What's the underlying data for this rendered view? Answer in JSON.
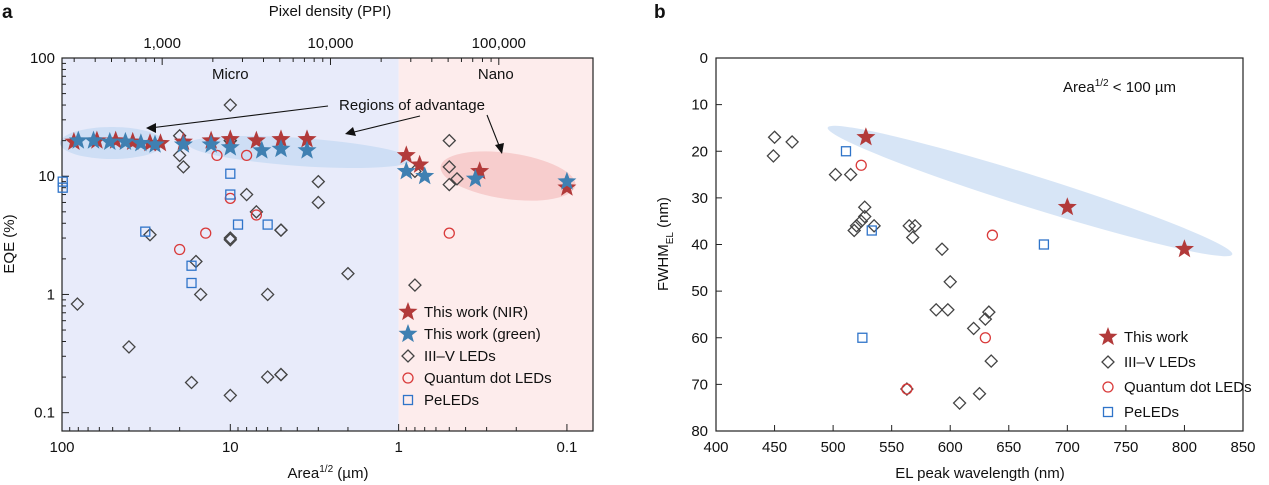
{
  "panel_labels": {
    "a": "a",
    "b": "b"
  },
  "colors": {
    "nir": "#b23a3a",
    "green": "#3f80b2",
    "iii_v": "#444444",
    "qd": "#d93a3a",
    "pe": "#2f74c9",
    "micro_bg": "#e8ebfa",
    "nano_bg": "#fdecec",
    "ellipse_blue": "#c9dcf3",
    "ellipse_red": "#f6caca"
  },
  "chart_data": [
    {
      "type": "scatter",
      "panel": "a",
      "xlabel_main": "Area",
      "xlabel_sup": "1/2",
      "xlabel_unit": " (µm)",
      "top_xlabel": "Pixel density (PPI)",
      "ylabel": "EQE (%)",
      "xscale": "log",
      "yscale": "log",
      "xlim": [
        100,
        0.07
      ],
      "ylim": [
        0.07,
        100
      ],
      "x_ticks": [
        {
          "v": 100,
          "label": "100"
        },
        {
          "v": 10,
          "label": "10"
        },
        {
          "v": 1,
          "label": "1"
        },
        {
          "v": 0.1,
          "label": "0.1"
        }
      ],
      "y_ticks": [
        {
          "v": 100,
          "label": "100"
        },
        {
          "v": 10,
          "label": "10"
        },
        {
          "v": 1,
          "label": "1"
        },
        {
          "v": 0.1,
          "label": "0.1"
        }
      ],
      "top_ticks": [
        {
          "v": 1000,
          "label": "1,000"
        },
        {
          "v": 10000,
          "label": "10,000"
        },
        {
          "v": 100000,
          "label": "100,000"
        }
      ],
      "regions": [
        {
          "name": "Micro",
          "x_from": 100,
          "x_to": 1
        },
        {
          "name": "Nano",
          "x_from": 1,
          "x_to": 0.07
        }
      ],
      "annotation": "Regions of advantage",
      "series": [
        {
          "name": "This work (NIR)",
          "marker": "star",
          "color_key": "nir",
          "x": [
            85,
            62,
            48,
            38,
            30,
            26,
            19,
            13,
            10,
            7,
            5,
            3.5,
            0.9,
            0.75,
            0.33,
            0.1
          ],
          "y": [
            19.5,
            20,
            20,
            19.5,
            19,
            19,
            19.5,
            20,
            20.5,
            20,
            20.5,
            20.5,
            15,
            12.5,
            11,
            8
          ]
        },
        {
          "name": "This work (green)",
          "marker": "star",
          "color_key": "green",
          "x": [
            80,
            65,
            52,
            42,
            34,
            28,
            19,
            13,
            10,
            6.5,
            5,
            3.5,
            0.9,
            0.7,
            0.35,
            0.1
          ],
          "y": [
            20,
            20,
            19.5,
            19.5,
            19,
            18.5,
            18.5,
            18.5,
            17.5,
            16.5,
            17,
            16.5,
            11,
            10,
            9.5,
            9
          ]
        },
        {
          "name": "III–V LEDs",
          "marker": "diamond",
          "color_key": "iii_v",
          "x": [
            81,
            40,
            30,
            20,
            20,
            19,
            16,
            10,
            10,
            10,
            10,
            10,
            8,
            7,
            6,
            5,
            5,
            3,
            3,
            2,
            0.8,
            0.5,
            0.5,
            0.5,
            0.45,
            0.8
          ],
          "y": [
            0.83,
            0.36,
            3.2,
            22,
            15,
            12,
            1.9,
            40,
            20,
            20,
            3,
            2.9,
            7,
            5,
            1,
            3.5,
            0.21,
            9,
            6,
            1.5,
            11,
            20,
            12,
            8.5,
            9.5,
            1.2
          ]
        },
        {
          "name": "Quantum dot LEDs",
          "marker": "circle",
          "color_key": "qd",
          "x": [
            20,
            14,
            12,
            10,
            8,
            7,
            0.5
          ],
          "y": [
            2.4,
            3.3,
            15,
            6.5,
            15,
            4.7,
            3.3
          ]
        },
        {
          "name": "PeLEDs",
          "marker": "square",
          "color_key": "pe",
          "x": [
            99,
            99,
            32,
            17,
            17,
            10,
            10,
            9,
            6
          ],
          "y": [
            9,
            8,
            3.4,
            1.75,
            1.25,
            10.5,
            7,
            3.9,
            3.9
          ]
        }
      ],
      "extra_diamonds_x": [
        17,
        15,
        10,
        6,
        5,
        5
      ],
      "extra_diamonds_y": [
        0.18,
        1,
        0.14,
        0.2,
        0.21,
        3.5
      ]
    },
    {
      "type": "scatter",
      "panel": "b",
      "xlabel": "EL peak wavelength (nm)",
      "ylabel_main": "FWHM",
      "ylabel_sub": "EL",
      "ylabel_unit": " (nm)",
      "annotation_main": "Area",
      "annotation_sup": "1/2",
      "annotation_rest": " < 100 µm",
      "xlim": [
        400,
        850
      ],
      "ylim": [
        80,
        0
      ],
      "x_ticks": [
        400,
        450,
        500,
        550,
        600,
        650,
        700,
        750,
        800,
        850
      ],
      "y_ticks": [
        0,
        10,
        20,
        30,
        40,
        50,
        60,
        70,
        80
      ],
      "series": [
        {
          "name": "This work",
          "marker": "star",
          "color_key": "nir",
          "x": [
            528,
            700,
            800
          ],
          "y": [
            17,
            32,
            41
          ]
        },
        {
          "name": "III–V LEDs",
          "marker": "diamond",
          "color_key": "iii_v",
          "x": [
            450,
            449,
            465,
            502,
            515,
            518,
            527,
            527,
            535,
            524,
            520,
            565,
            570,
            568,
            593,
            600,
            598,
            588,
            620,
            633,
            630,
            635,
            625,
            563,
            608
          ],
          "y": [
            17,
            21,
            18,
            25,
            25,
            37,
            32,
            34,
            36,
            35,
            36,
            36,
            36,
            38.5,
            41,
            48,
            54,
            54,
            58,
            54.5,
            56,
            65,
            72,
            71,
            74
          ]
        },
        {
          "name": "Quantum dot LEDs",
          "marker": "circle",
          "color_key": "qd",
          "x": [
            524,
            636,
            630,
            563
          ],
          "y": [
            23,
            38,
            60,
            71
          ]
        },
        {
          "name": "PeLEDs",
          "marker": "square",
          "color_key": "pe",
          "x": [
            511,
            533,
            680,
            525
          ],
          "y": [
            20,
            37,
            40,
            60
          ]
        }
      ]
    }
  ]
}
